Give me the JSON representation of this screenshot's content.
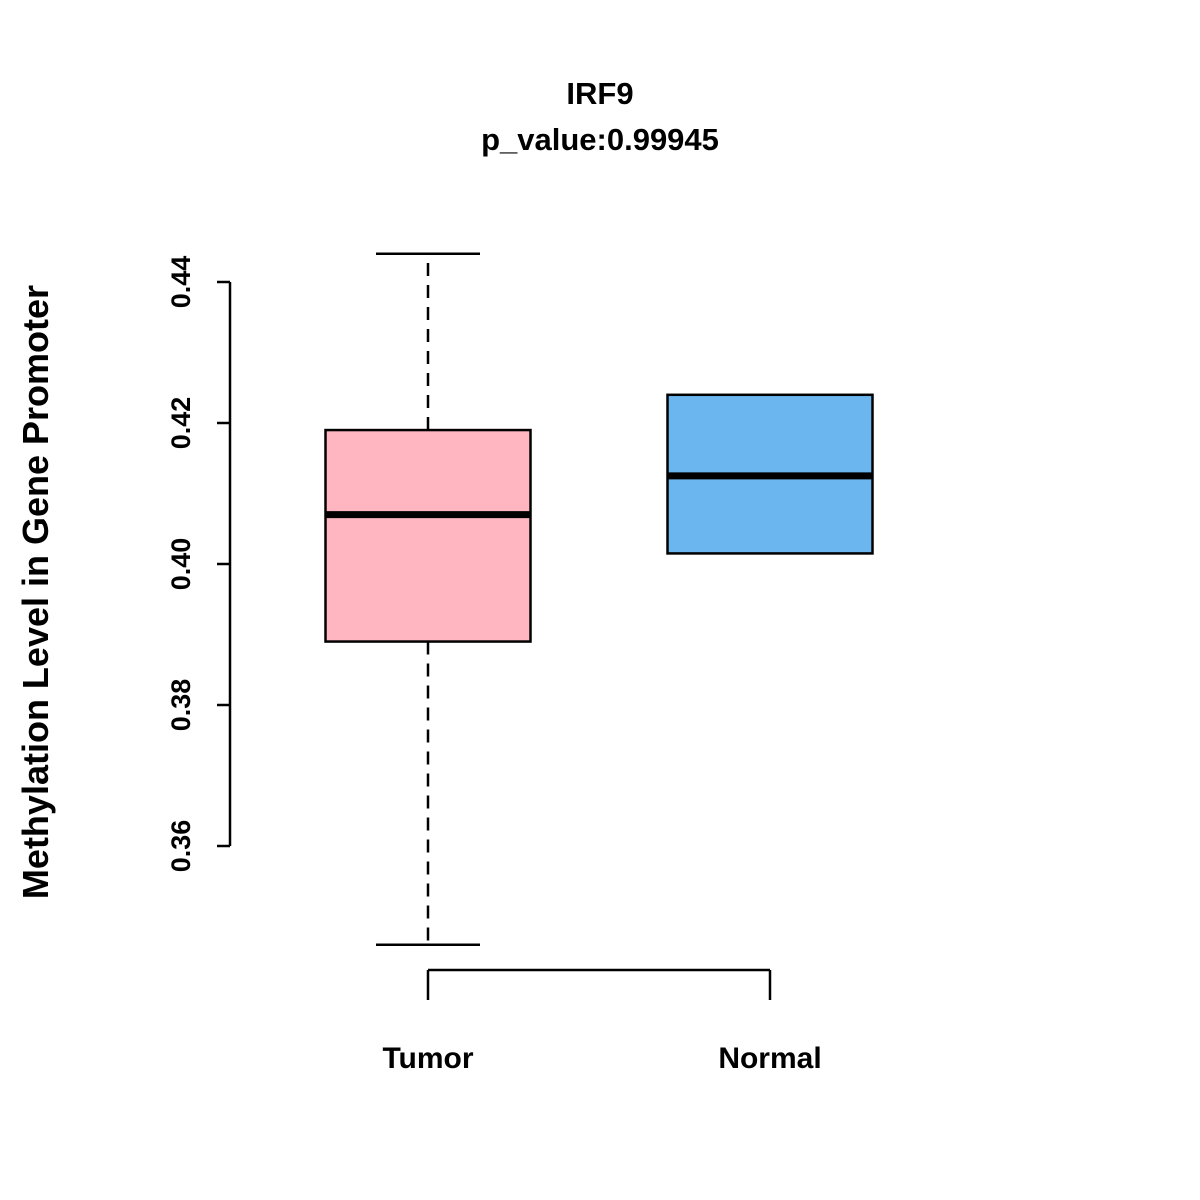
{
  "chart_data": {
    "type": "boxplot",
    "title": "IRF9",
    "subtitle": "p_value:0.99945",
    "ylabel": "Methylation Level in Gene Promoter",
    "xlabel": "",
    "categories": [
      "Tumor",
      "Normal"
    ],
    "y_ticks": [
      0.36,
      0.38,
      0.4,
      0.42,
      0.44
    ],
    "y_tick_labels": [
      "0.36",
      "0.38",
      "0.40",
      "0.42",
      "0.44"
    ],
    "ylim": [
      0.345,
      0.445
    ],
    "grid": "off",
    "legend": "none",
    "series": [
      {
        "name": "Tumor",
        "color": "#FFB6C1",
        "whisker_low": 0.346,
        "q1": 0.389,
        "median": 0.407,
        "q3": 0.419,
        "whisker_high": 0.444
      },
      {
        "name": "Normal",
        "color": "#6CB6F0",
        "whisker_low": 0.4015,
        "q1": 0.4015,
        "median": 0.4125,
        "q3": 0.424,
        "whisker_high": 0.424
      }
    ]
  }
}
